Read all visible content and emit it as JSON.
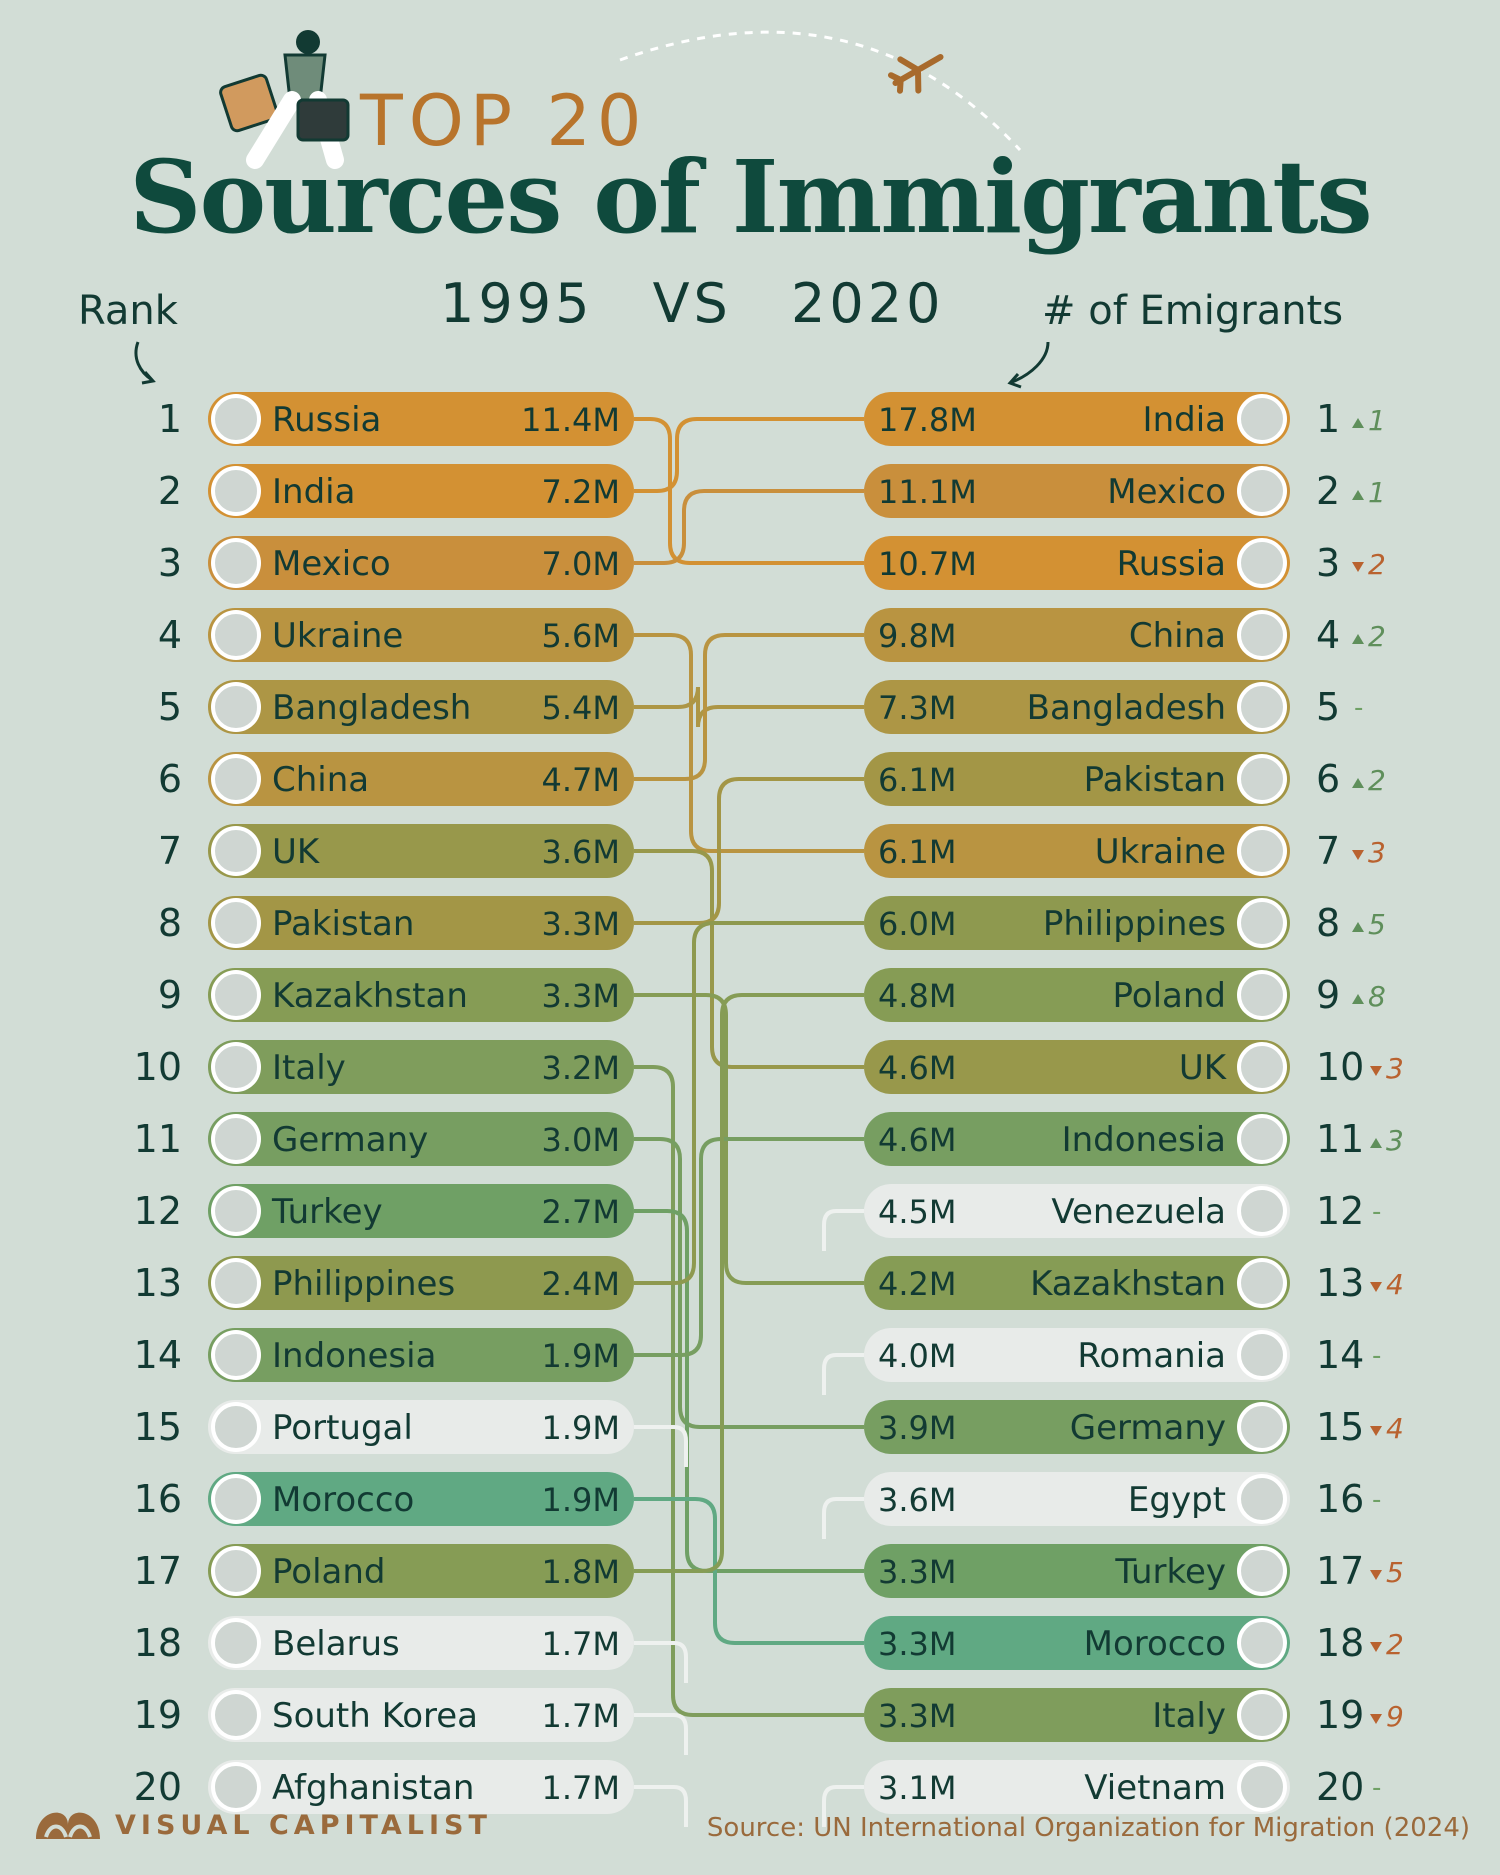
{
  "header": {
    "top_label": "TOP 20",
    "title": "Sources of Immigrants",
    "year_left": "1995",
    "vs": "VS",
    "year_right": "2020",
    "rank_label": "Rank",
    "emigrants_label": "# of Emigrants"
  },
  "footer": {
    "brand": "VISUAL CAPITALIST",
    "source": "Source: UN International Organization for Migration (2024)"
  },
  "chart_data": {
    "type": "table",
    "left_title": "1995",
    "right_title": "2020",
    "rows_1995": [
      {
        "rank": 1,
        "country": "Russia",
        "value": "11.4M"
      },
      {
        "rank": 2,
        "country": "India",
        "value": "7.2M"
      },
      {
        "rank": 3,
        "country": "Mexico",
        "value": "7.0M"
      },
      {
        "rank": 4,
        "country": "Ukraine",
        "value": "5.6M"
      },
      {
        "rank": 5,
        "country": "Bangladesh",
        "value": "5.4M"
      },
      {
        "rank": 6,
        "country": "China",
        "value": "4.7M"
      },
      {
        "rank": 7,
        "country": "UK",
        "value": "3.6M"
      },
      {
        "rank": 8,
        "country": "Pakistan",
        "value": "3.3M"
      },
      {
        "rank": 9,
        "country": "Kazakhstan",
        "value": "3.3M"
      },
      {
        "rank": 10,
        "country": "Italy",
        "value": "3.2M"
      },
      {
        "rank": 11,
        "country": "Germany",
        "value": "3.0M"
      },
      {
        "rank": 12,
        "country": "Turkey",
        "value": "2.7M"
      },
      {
        "rank": 13,
        "country": "Philippines",
        "value": "2.4M"
      },
      {
        "rank": 14,
        "country": "Indonesia",
        "value": "1.9M"
      },
      {
        "rank": 15,
        "country": "Portugal",
        "value": "1.9M"
      },
      {
        "rank": 16,
        "country": "Morocco",
        "value": "1.9M"
      },
      {
        "rank": 17,
        "country": "Poland",
        "value": "1.8M"
      },
      {
        "rank": 18,
        "country": "Belarus",
        "value": "1.7M"
      },
      {
        "rank": 19,
        "country": "South Korea",
        "value": "1.7M"
      },
      {
        "rank": 20,
        "country": "Afghanistan",
        "value": "1.7M"
      }
    ],
    "rows_2020": [
      {
        "rank": 1,
        "country": "India",
        "value": "17.8M",
        "change": "1",
        "dir": "up"
      },
      {
        "rank": 2,
        "country": "Mexico",
        "value": "11.1M",
        "change": "1",
        "dir": "up"
      },
      {
        "rank": 3,
        "country": "Russia",
        "value": "10.7M",
        "change": "2",
        "dir": "down"
      },
      {
        "rank": 4,
        "country": "China",
        "value": "9.8M",
        "change": "2",
        "dir": "up"
      },
      {
        "rank": 5,
        "country": "Bangladesh",
        "value": "7.3M",
        "change": "-",
        "dir": "same"
      },
      {
        "rank": 6,
        "country": "Pakistan",
        "value": "6.1M",
        "change": "2",
        "dir": "up"
      },
      {
        "rank": 7,
        "country": "Ukraine",
        "value": "6.1M",
        "change": "3",
        "dir": "down"
      },
      {
        "rank": 8,
        "country": "Philippines",
        "value": "6.0M",
        "change": "5",
        "dir": "up"
      },
      {
        "rank": 9,
        "country": "Poland",
        "value": "4.8M",
        "change": "8",
        "dir": "up"
      },
      {
        "rank": 10,
        "country": "UK",
        "value": "4.6M",
        "change": "3",
        "dir": "down"
      },
      {
        "rank": 11,
        "country": "Indonesia",
        "value": "4.6M",
        "change": "3",
        "dir": "up"
      },
      {
        "rank": 12,
        "country": "Venezuela",
        "value": "4.5M",
        "change": "-",
        "dir": "same"
      },
      {
        "rank": 13,
        "country": "Kazakhstan",
        "value": "4.2M",
        "change": "4",
        "dir": "down"
      },
      {
        "rank": 14,
        "country": "Romania",
        "value": "4.0M",
        "change": "-",
        "dir": "same"
      },
      {
        "rank": 15,
        "country": "Germany",
        "value": "3.9M",
        "change": "4",
        "dir": "down"
      },
      {
        "rank": 16,
        "country": "Egypt",
        "value": "3.6M",
        "change": "-",
        "dir": "same"
      },
      {
        "rank": 17,
        "country": "Turkey",
        "value": "3.3M",
        "change": "5",
        "dir": "down"
      },
      {
        "rank": 18,
        "country": "Morocco",
        "value": "3.3M",
        "change": "2",
        "dir": "down"
      },
      {
        "rank": 19,
        "country": "Italy",
        "value": "3.3M",
        "change": "9",
        "dir": "down"
      },
      {
        "rank": 20,
        "country": "Vietnam",
        "value": "3.1M",
        "change": "-",
        "dir": "same"
      }
    ]
  },
  "colors": {
    "background": "#d2ddd6",
    "title": "#0f4a3d",
    "accent": "#b8742c",
    "inactive_row": "#e8ebe9",
    "up_arrow": "#5f8f5b",
    "down_arrow": "#b9622f"
  }
}
